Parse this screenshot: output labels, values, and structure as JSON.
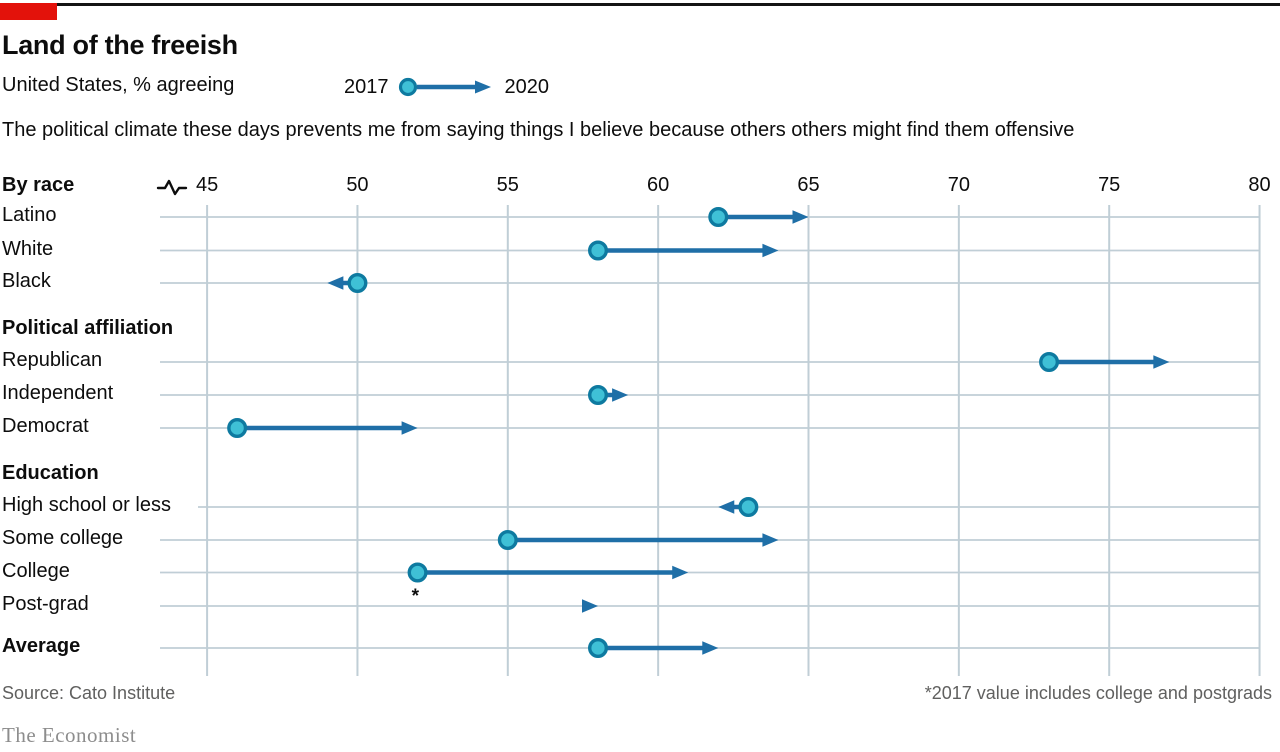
{
  "header": {
    "title": "Land of the freeish",
    "subtitle": "United States, % agreeing",
    "legend": {
      "start_label": "2017",
      "end_label": "2020"
    },
    "question": "The political climate these days prevents me from saying things I believe because others others might find them offensive"
  },
  "footer": {
    "source": "Source: Cato Institute",
    "footnote": "*2017 value includes college and postgrads",
    "brand": "The Economist"
  },
  "colors": {
    "accent_red": "#e3120b",
    "top_rule": "#141414",
    "arrow_blue": "#1f6fa7",
    "dot_fill": "#3fc0d6",
    "dot_stroke": "#0e7aa0",
    "gridline": "#c0ced6",
    "text": "#0d0d0d",
    "muted_text": "#60605f"
  },
  "chart_data": {
    "type": "arrow-dumbbell",
    "title": "Land of the freeish",
    "subtitle": "United States, % agreeing",
    "statement": "The political climate these days prevents me from saying things I believe because others others might find them offensive",
    "series_labels": {
      "start": "2017",
      "end": "2020"
    },
    "x_axis": {
      "min": 45,
      "max": 80,
      "ticks": [
        45,
        50,
        55,
        60,
        65,
        70,
        75,
        80
      ],
      "break_marker": true
    },
    "grid": "on",
    "groups": [
      {
        "label": "By race",
        "rows": [
          {
            "label": "Latino",
            "v2017": 62,
            "v2020": 65
          },
          {
            "label": "White",
            "v2017": 58,
            "v2020": 64
          },
          {
            "label": "Black",
            "v2017": 50,
            "v2020": 49
          }
        ]
      },
      {
        "label": "Political affiliation",
        "rows": [
          {
            "label": "Republican",
            "v2017": 73,
            "v2020": 77
          },
          {
            "label": "Independent",
            "v2017": 58,
            "v2020": 59
          },
          {
            "label": "Democrat",
            "v2017": 46,
            "v2020": 52
          }
        ]
      },
      {
        "label": "Education",
        "rows": [
          {
            "label": "High school or less",
            "v2017": 63,
            "v2020": 62
          },
          {
            "label": "Some college",
            "v2017": 55,
            "v2020": 64
          },
          {
            "label": "College",
            "v2017": 52,
            "v2020": 61,
            "asterisk": true
          },
          {
            "label": "Post-grad",
            "v2017": null,
            "v2020": 58
          }
        ]
      },
      {
        "label": "",
        "rows": [
          {
            "label": "Average",
            "v2017": 58,
            "v2020": 62,
            "bold": true
          }
        ]
      }
    ],
    "footnote": "*2017 value includes college and postgrads",
    "source": "Source: Cato Institute"
  }
}
